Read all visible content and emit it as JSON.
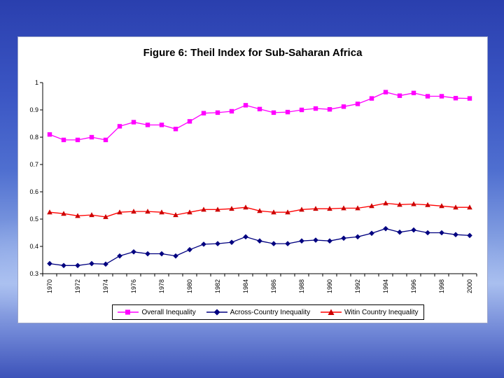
{
  "chart_data": {
    "type": "line",
    "title": "Figure 6: Theil Index for Sub-Saharan Africa",
    "xlabel": "",
    "ylabel": "",
    "ylim": [
      0.3,
      1.0
    ],
    "yticks": [
      "0.3",
      "0.4",
      "0.5",
      "0.6",
      "0.7",
      "0.8",
      "0.9",
      "1"
    ],
    "x": [
      1970,
      1971,
      1972,
      1973,
      1974,
      1975,
      1976,
      1977,
      1978,
      1979,
      1980,
      1981,
      1982,
      1983,
      1984,
      1985,
      1986,
      1987,
      1988,
      1989,
      1990,
      1991,
      1992,
      1993,
      1994,
      1995,
      1996,
      1997,
      1998,
      1999,
      2000
    ],
    "xtick_labels": [
      "1970",
      "1972",
      "1974",
      "1976",
      "1978",
      "1980",
      "1982",
      "1984",
      "1986",
      "1988",
      "1990",
      "1992",
      "1994",
      "1996",
      "1998",
      "2000"
    ],
    "series": [
      {
        "name": "Overall Inequality",
        "color": "#ff00ff",
        "marker": "square",
        "values": [
          0.81,
          0.79,
          0.79,
          0.8,
          0.79,
          0.84,
          0.855,
          0.845,
          0.845,
          0.83,
          0.858,
          0.888,
          0.89,
          0.895,
          0.917,
          0.903,
          0.89,
          0.892,
          0.9,
          0.905,
          0.902,
          0.912,
          0.922,
          0.942,
          0.965,
          0.952,
          0.962,
          0.95,
          0.95,
          0.943,
          0.942
        ]
      },
      {
        "name": "Across-Country Inequality",
        "color": "#000080",
        "marker": "diamond",
        "values": [
          0.337,
          0.33,
          0.33,
          0.337,
          0.335,
          0.365,
          0.38,
          0.373,
          0.373,
          0.365,
          0.388,
          0.408,
          0.41,
          0.415,
          0.435,
          0.42,
          0.41,
          0.41,
          0.42,
          0.423,
          0.42,
          0.43,
          0.435,
          0.448,
          0.465,
          0.452,
          0.46,
          0.45,
          0.45,
          0.443,
          0.44
        ]
      },
      {
        "name": "Witin Country Inequality",
        "color": "#ff0000",
        "marker": "triangle",
        "values": [
          0.525,
          0.52,
          0.512,
          0.515,
          0.508,
          0.525,
          0.528,
          0.528,
          0.525,
          0.515,
          0.525,
          0.535,
          0.535,
          0.538,
          0.543,
          0.53,
          0.525,
          0.525,
          0.535,
          0.538,
          0.538,
          0.54,
          0.54,
          0.548,
          0.558,
          0.553,
          0.555,
          0.552,
          0.548,
          0.543,
          0.543
        ]
      }
    ],
    "legend_position": "bottom"
  }
}
